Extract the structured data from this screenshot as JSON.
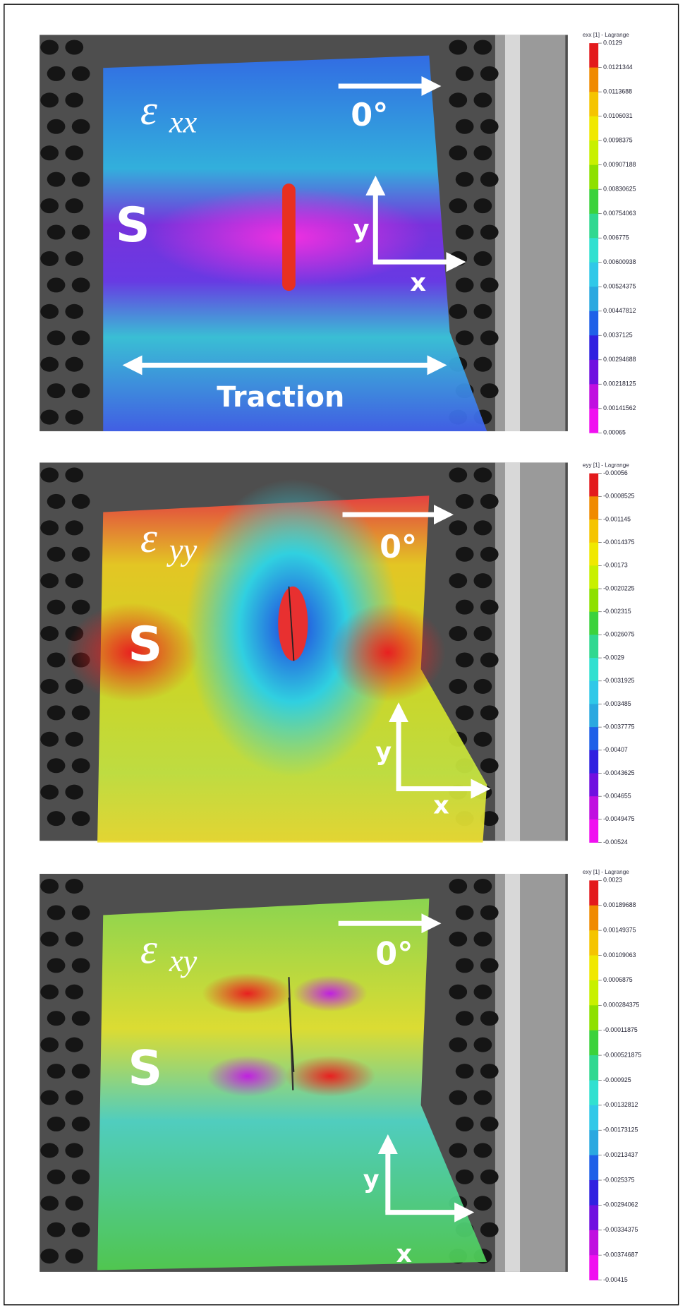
{
  "panels": [
    {
      "label": {
        "symbol": "ε",
        "subscript": "xx"
      },
      "angle": "0°",
      "side": "S",
      "axis_y": "y",
      "axis_x": "x",
      "load": "Traction",
      "colorbar": {
        "title": "exx [1] - Lagrange",
        "ticks": [
          "0.0129",
          "0.0121344",
          "0.0113688",
          "0.0106031",
          "0.0098375",
          "0.00907188",
          "0.00830625",
          "0.00754063",
          "0.006775",
          "0.00600938",
          "0.00524375",
          "0.00447812",
          "0.0037125",
          "0.00294688",
          "0.00218125",
          "0.00141562",
          "0.00065"
        ]
      }
    },
    {
      "label": {
        "symbol": "ε",
        "subscript": "yy"
      },
      "angle": "0°",
      "side": "S",
      "axis_y": "y",
      "axis_x": "x",
      "colorbar": {
        "title": "eyy [1] - Lagrange",
        "ticks": [
          "-0.00056",
          "-0.0008525",
          "-0.001145",
          "-0.0014375",
          "-0.00173",
          "-0.0020225",
          "-0.002315",
          "-0.0026075",
          "-0.0029",
          "-0.0031925",
          "-0.003485",
          "-0.0037775",
          "-0.00407",
          "-0.0043625",
          "-0.004655",
          "-0.0049475",
          "-0.00524"
        ]
      }
    },
    {
      "label": {
        "symbol": "ε",
        "subscript": "xy"
      },
      "angle": "0°",
      "side": "S",
      "axis_y": "y",
      "axis_x": "x",
      "colorbar": {
        "title": "exy [1] - Lagrange",
        "ticks": [
          "0.0023",
          "0.00189688",
          "0.00149375",
          "0.00109063",
          "0.0006875",
          "0.000284375",
          "-0.00011875",
          "-0.000521875",
          "-0.000925",
          "-0.00132812",
          "-0.00173125",
          "-0.00213437",
          "-0.0025375",
          "-0.00294062",
          "-0.00334375",
          "-0.00374687",
          "-0.00415"
        ]
      }
    }
  ]
}
